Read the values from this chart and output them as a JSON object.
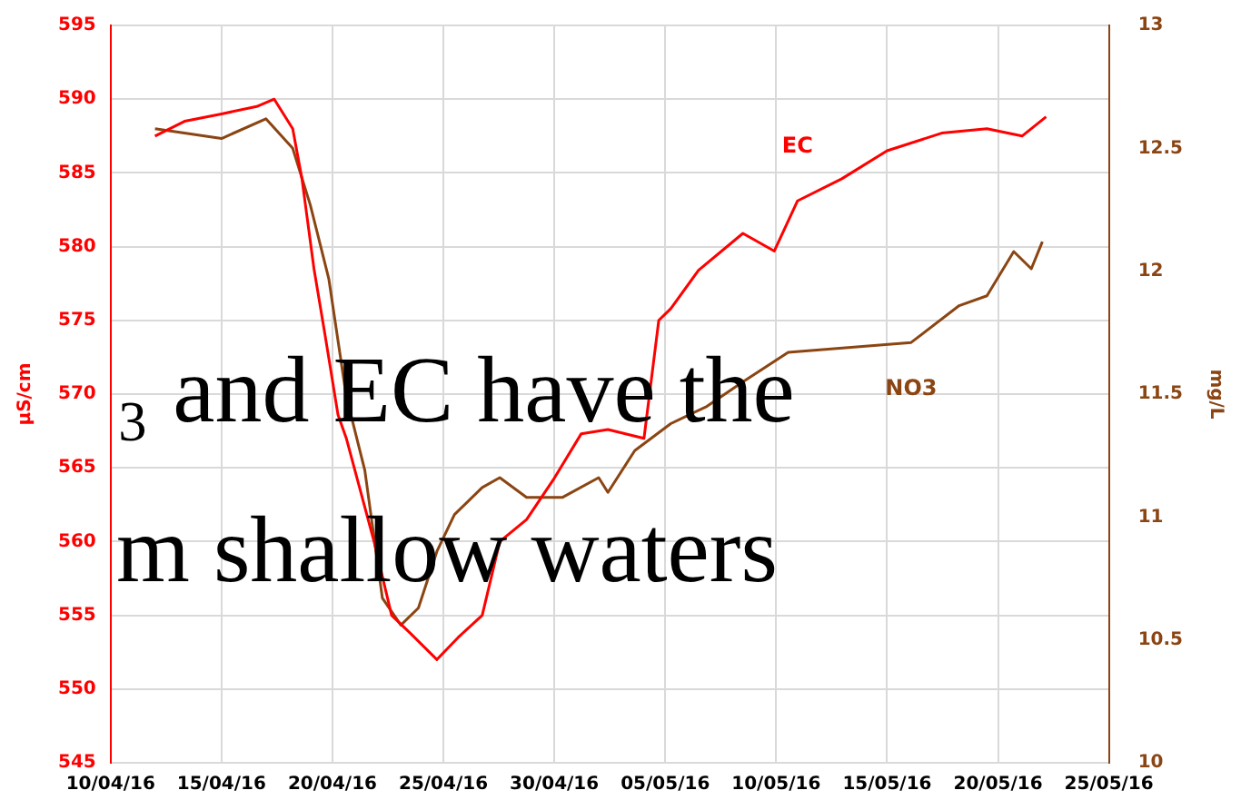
{
  "chart_data": {
    "type": "line",
    "ylabel": "µS/cm",
    "y2label": "mg/L",
    "series": [
      {
        "name": "EC",
        "color": "#ff0000",
        "x": [
          "--04-12",
          "--04-13T08:00",
          "--04-15",
          "--04-16T14:00",
          "--04-17T09:00",
          "--04-18T05:00",
          "--04-18T15:00",
          "--04-19T04:00",
          "--04-19T16:00",
          "--04-20T06:00",
          "--04-20T15:00",
          "--04-21T21:00",
          "--04-22T16:00",
          "--04-23T12:00",
          "--04-24T17:00",
          "--04-25T16:00",
          "--04-26T18:00",
          "--04-27T13:00",
          "--04-28T18:00",
          "--04-30",
          "--05-01T05:00",
          "--05-02T10:00",
          "--05-04T01:00",
          "--05-04T17:00",
          "--05-05T06:00",
          "--05-06T12:00",
          "--05-08T12:00",
          "--05-09T22:00",
          "--05-10T23:00",
          "--05-12T23:00",
          "--05-15",
          "--05-17T11:00",
          "--05-19T12:00",
          "--05-21T02:00",
          "--05-22T04:00"
        ],
        "values": [
          587.5,
          588.5,
          589,
          589.5,
          590,
          588,
          584.6,
          578.5,
          574,
          568.6,
          567,
          560,
          555,
          553.8,
          552,
          553.5,
          555,
          560,
          561.5,
          564.3,
          567.3,
          567.6,
          567,
          575,
          575.8,
          578.4,
          580.9,
          579.7,
          583.1,
          584.6,
          586.5,
          587.7,
          588,
          587.5,
          588.8
        ]
      },
      {
        "name": "NO3",
        "color": "#8b4513",
        "axis": "y2",
        "x": [
          "--04-12",
          "--04-15",
          "--04-17",
          "--04-18T05:00",
          "--04-19",
          "--04-19T20:00",
          "--04-20T15:00",
          "--04-21T11:00",
          "--04-22T06:00",
          "--04-23T02:00",
          "--04-23T21:00",
          "--04-24T17:00",
          "--04-25T12:00",
          "--04-26T18:00",
          "--04-27T13:00",
          "--04-28T18:00",
          "--04-30T09:00",
          "--05-02",
          "--05-02T10:00",
          "--05-03T15:00",
          "--05-05T06:00",
          "--05-06T21:00",
          "--05-08T12:00",
          "--05-10T13:00",
          "--05-16T02:00",
          "--05-18T06:00",
          "--05-19T12:00",
          "--05-20T17:00",
          "--05-21T12:00",
          "--05-22"
        ],
        "values": [
          12.58,
          12.54,
          12.62,
          12.5,
          12.27,
          11.97,
          11.49,
          11.19,
          10.67,
          10.56,
          10.63,
          10.86,
          11.01,
          11.12,
          11.16,
          11.08,
          11.08,
          11.16,
          11.1,
          11.27,
          11.38,
          11.45,
          11.55,
          11.67,
          11.71,
          11.86,
          11.9,
          12.08,
          12.01,
          12.12
        ]
      }
    ],
    "xlim": [
      "--04-10",
      "--05-25"
    ],
    "xticks": [
      {
        "value": "--04-10",
        "label": "10/04/16"
      },
      {
        "value": "--04-15",
        "label": "15/04/16"
      },
      {
        "value": "--04-20",
        "label": "20/04/16"
      },
      {
        "value": "--04-25",
        "label": "25/04/16"
      },
      {
        "value": "--04-30",
        "label": "30/04/16"
      },
      {
        "value": "--05-05",
        "label": "05/05/16"
      },
      {
        "value": "--05-10",
        "label": "10/05/16"
      },
      {
        "value": "--05-15",
        "label": "15/05/16"
      },
      {
        "value": "--05-20",
        "label": "20/05/16"
      },
      {
        "value": "--05-25",
        "label": "25/05/16"
      }
    ],
    "ylim": [
      545,
      595
    ],
    "yticks": [
      545,
      550,
      555,
      560,
      565,
      570,
      575,
      580,
      585,
      590,
      595
    ],
    "y2lim": [
      10,
      13
    ],
    "y2ticks": [
      10,
      10.5,
      11,
      11.5,
      12,
      12.5,
      13
    ],
    "grid": true,
    "legend": false,
    "marker": "none",
    "line_style": "solid",
    "annotations": [
      "₃ and EC have the",
      "m shallow waters"
    ]
  }
}
